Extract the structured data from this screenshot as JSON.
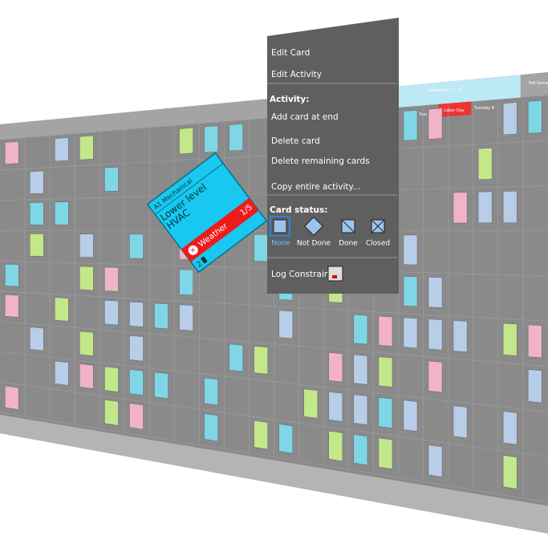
{
  "header": {
    "week": "September 7 - 13",
    "holiday": "Labor Day",
    "day": "Tuesday 8",
    "sun": "Sun 6",
    "term": "Fall Semester"
  },
  "menu": {
    "items": [
      "Edit Card",
      "Edit Activity"
    ],
    "activity_title": "Activity:",
    "activity_items": [
      "Add card at end",
      "Delete card",
      "Delete remaining cards",
      "Copy entire activity..."
    ],
    "status_title": "Card status:",
    "statuses": [
      "None",
      "Not Done",
      "Done",
      "Closed"
    ],
    "log": "Log Constraint"
  },
  "card": {
    "trade": "A1 Mechanical",
    "title": "Lower level HVAC",
    "constraint": "Weather",
    "count": "1/5",
    "crew": "2"
  }
}
